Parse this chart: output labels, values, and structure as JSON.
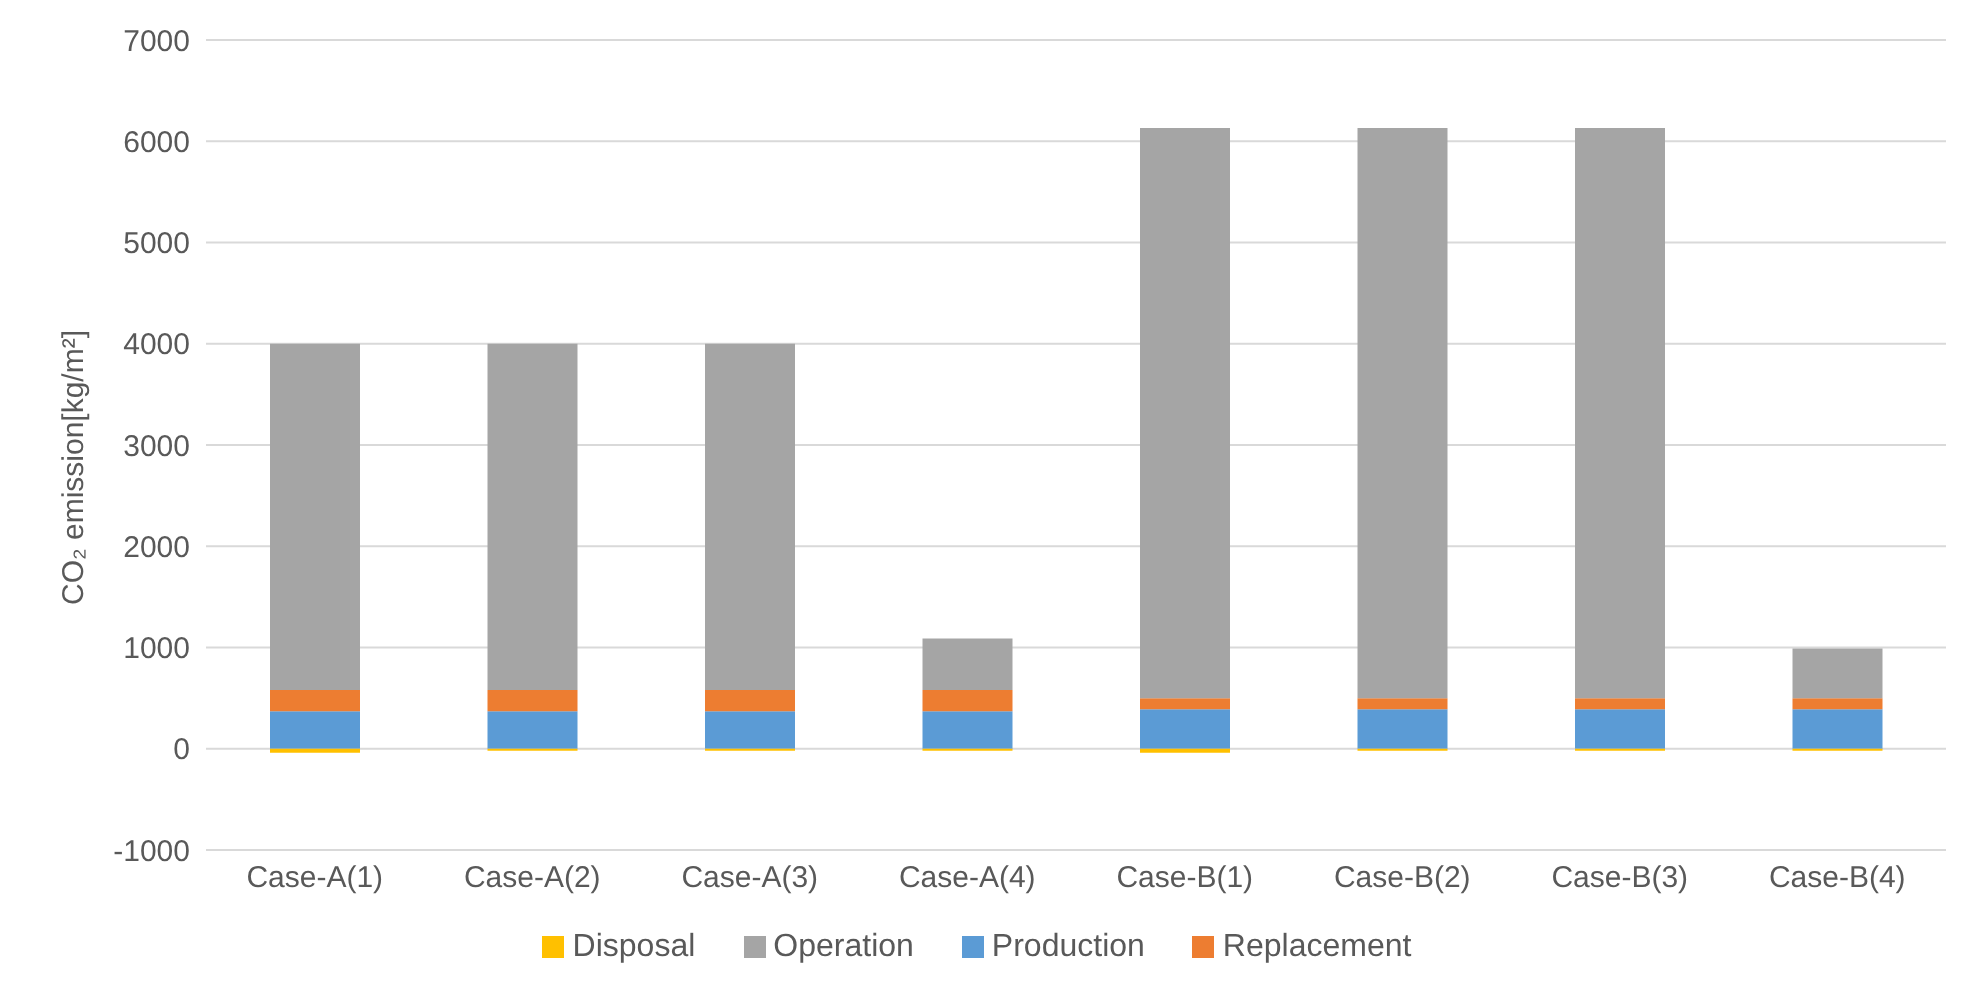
{
  "chart_data": {
    "type": "bar",
    "stacked": true,
    "ylabel": "CO₂ emission[kg/m²]",
    "categories": [
      "Case-A(1)",
      "Case-A(2)",
      "Case-A(3)",
      "Case-A(4)",
      "Case-B(1)",
      "Case-B(2)",
      "Case-B(3)",
      "Case-B(4)"
    ],
    "series": [
      {
        "name": "Production",
        "color": "#5b9bd5",
        "values": [
          370,
          370,
          370,
          370,
          390,
          390,
          390,
          390
        ]
      },
      {
        "name": "Replacement",
        "color": "#ed7d31",
        "values": [
          210,
          210,
          210,
          210,
          110,
          110,
          110,
          110
        ]
      },
      {
        "name": "Operation",
        "color": "#a5a5a5",
        "values": [
          3420,
          3420,
          3420,
          510,
          5630,
          5630,
          5630,
          490
        ]
      },
      {
        "name": "Disposal",
        "color": "#ffc000",
        "values": [
          -40,
          -20,
          -20,
          -20,
          -40,
          -20,
          -20,
          -20
        ]
      }
    ],
    "ylim": [
      -1000,
      7000
    ],
    "yticks": [
      -1000,
      0,
      1000,
      2000,
      3000,
      4000,
      5000,
      6000,
      7000
    ],
    "grid": "y",
    "legend": "bottom"
  }
}
